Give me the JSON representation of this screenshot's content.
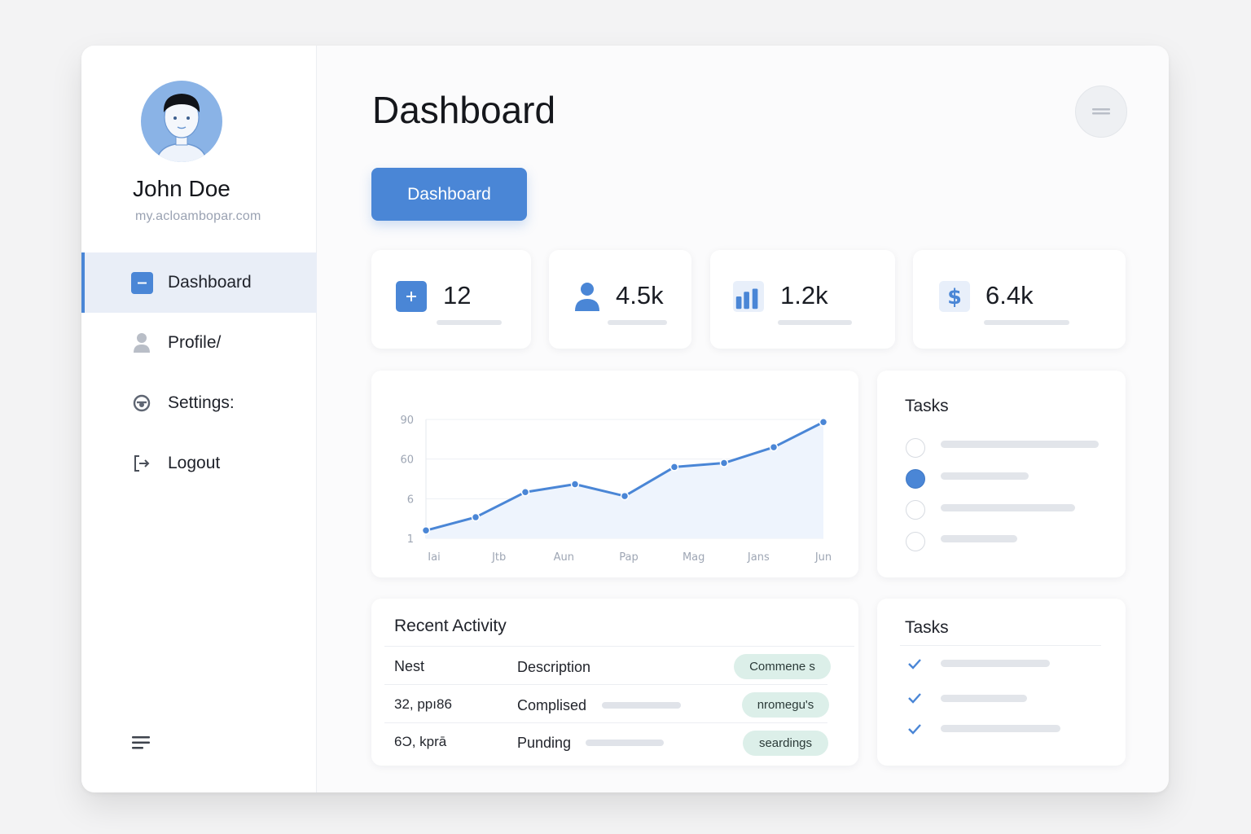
{
  "user": {
    "name": "John Doe",
    "email": "my.acloambopar.com"
  },
  "sidebar": {
    "items": [
      {
        "label": "Dashboard",
        "icon": "dashboard-icon",
        "active": true
      },
      {
        "label": "Profile/",
        "icon": "user-icon",
        "active": false
      },
      {
        "label": "Settings:",
        "icon": "settings-icon",
        "active": false
      },
      {
        "label": "Logout",
        "icon": "logout-icon",
        "active": false
      }
    ],
    "footer_icon": "menu-icon"
  },
  "header": {
    "title": "Dashboard",
    "primary_button": "Dashboard",
    "round_button_icon": "minus-icon"
  },
  "stats": [
    {
      "value": "12",
      "icon": "plus-icon"
    },
    {
      "value": "4.5k",
      "icon": "user-icon"
    },
    {
      "value": "1.2k",
      "icon": "bar-chart-icon"
    },
    {
      "value": "6.4k",
      "icon": "dollar-icon"
    }
  ],
  "chart_data": {
    "type": "area",
    "title": "",
    "xlabel": "",
    "ylabel": "",
    "x_ticks": [
      "Iai",
      "Jtb",
      "Aun",
      "Pap",
      "Mag",
      "Jans",
      "Jun"
    ],
    "y_ticks": [
      "90",
      "60",
      "6",
      "1"
    ],
    "series": [
      {
        "values": [
          6,
          16,
          35,
          41,
          32,
          54,
          57,
          69,
          88
        ]
      }
    ],
    "ylim": [
      0,
      90
    ],
    "grid": true
  },
  "tasks_top": {
    "title": "Tasks",
    "items": [
      {
        "checked": false
      },
      {
        "checked": true
      },
      {
        "checked": false
      },
      {
        "checked": false
      }
    ]
  },
  "recent_activity": {
    "title": "Recent Activity",
    "columns": [
      "Nest",
      "Description"
    ],
    "header_pill": "Commene s",
    "rows": [
      {
        "col1": "32, ppı86",
        "col2": "Complised",
        "pill": "nromegu's"
      },
      {
        "col1": "6Ͻ, kprā",
        "col2": "Punding",
        "pill": "seardings"
      }
    ]
  },
  "tasks_bottom": {
    "title": "Tasks",
    "items": [
      {
        "checked": true
      },
      {
        "checked": true
      },
      {
        "checked": true
      }
    ]
  },
  "colors": {
    "accent": "#4a86d6",
    "pill": "#dcefe9",
    "active_nav": "#e9eef7"
  }
}
